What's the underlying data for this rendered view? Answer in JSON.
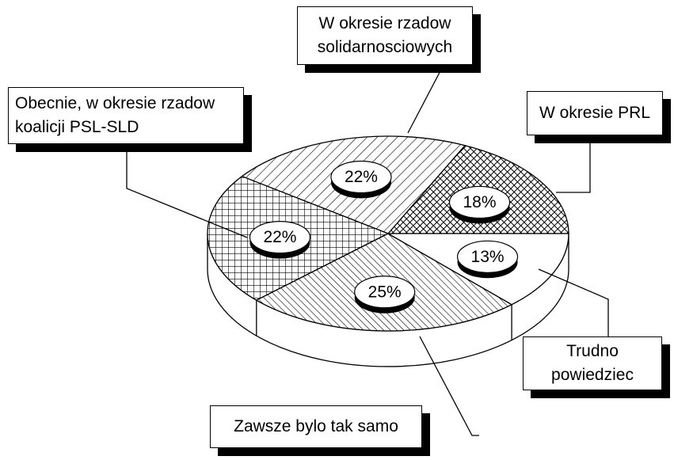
{
  "chart_data": {
    "type": "pie",
    "categories": [
      "W okresie PRL",
      "W okresie rzadow solidarnosciowych",
      "Obecnie, w okresie rzadow koalicji PSL-SLD",
      "Zawsze bylo tak samo",
      "Trudno powiedziec"
    ],
    "values": [
      18,
      22,
      22,
      25,
      13
    ],
    "value_labels": [
      "18%",
      "22%",
      "22%",
      "25%",
      "13%"
    ]
  }
}
